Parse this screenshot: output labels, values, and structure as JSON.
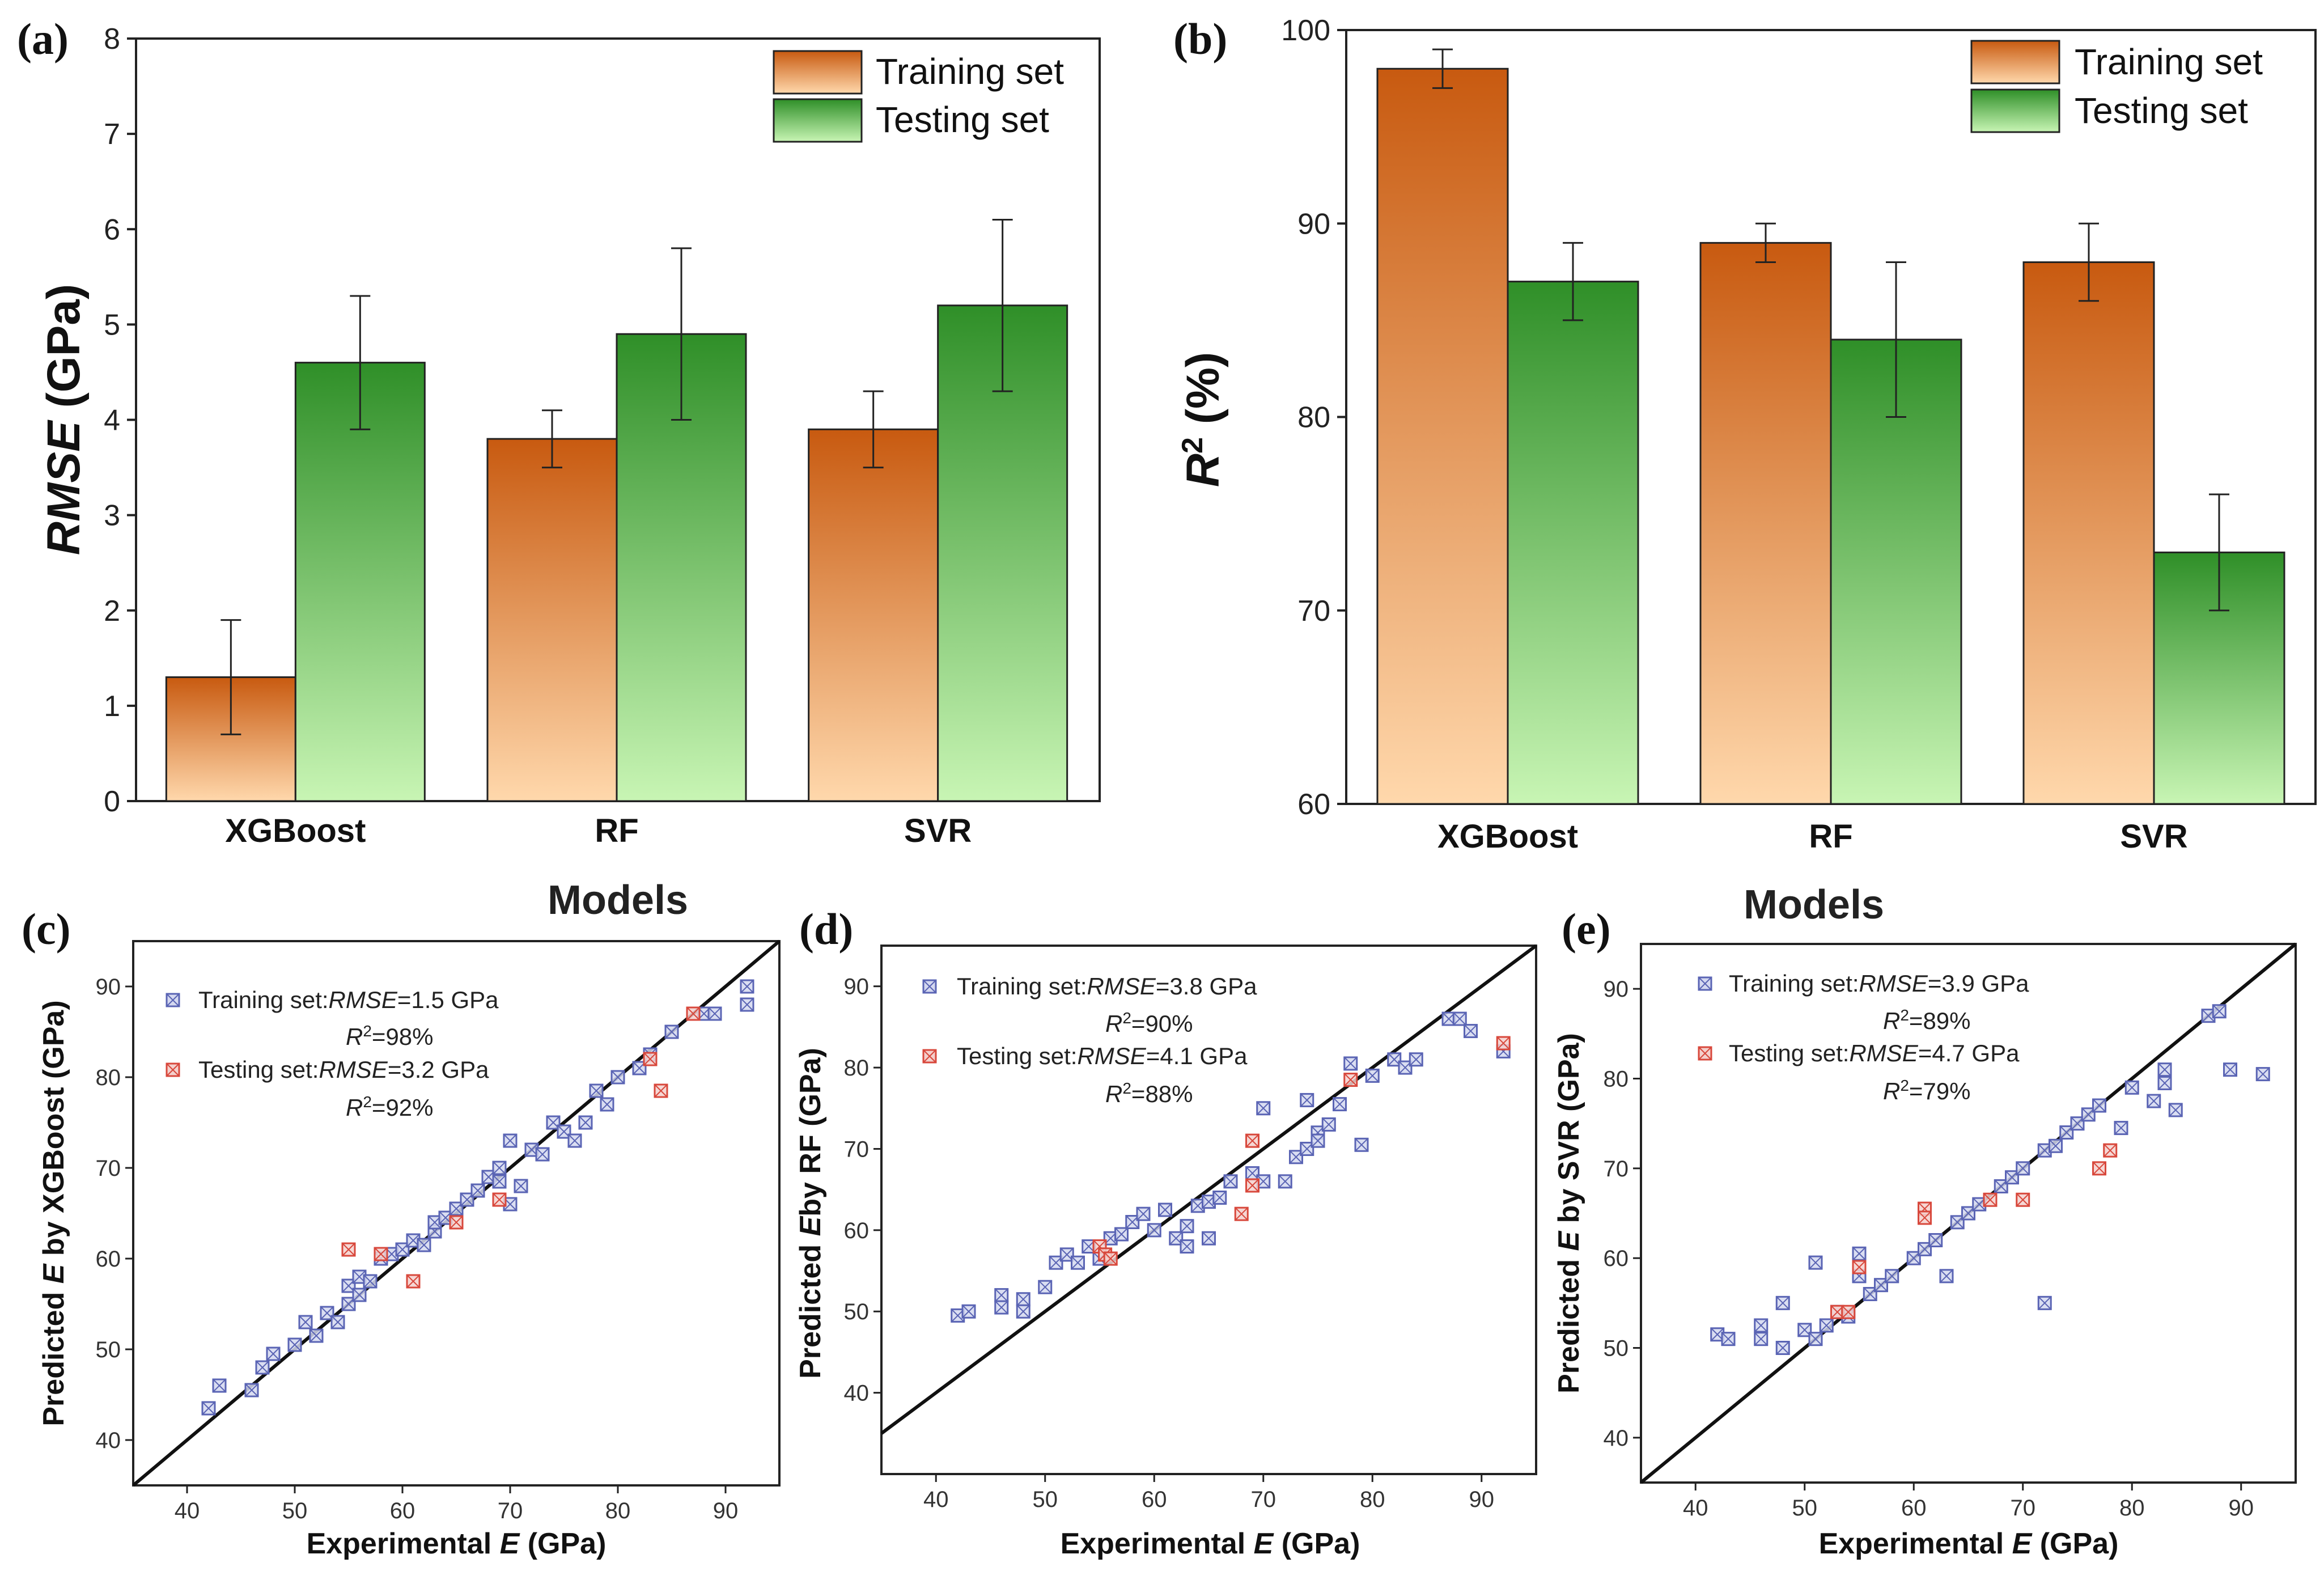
{
  "colors": {
    "train_top": "#c85a10",
    "train_bottom": "#ffd8ac",
    "test_top": "#2f8f28",
    "test_bottom": "#c8f5b4",
    "train_marker": "#5a64b4",
    "test_marker": "#d8483c"
  },
  "chart_data": [
    {
      "panel": "(a)",
      "type": "bar",
      "title": "",
      "xlabel": "Models",
      "ylabel_italic": "RMSE",
      "ylabel_rest": " (GPa)",
      "ylim": [
        0,
        8
      ],
      "yticks": [
        "0",
        "1",
        "2",
        "3",
        "4",
        "5",
        "6",
        "7",
        "8"
      ],
      "categories": [
        "XGBoost",
        "RF",
        "SVR"
      ],
      "legend": [
        "Training set",
        "Testing set"
      ],
      "legend_position": "top-right",
      "series": [
        {
          "name": "Training set",
          "values": [
            1.3,
            3.8,
            3.9
          ],
          "err_low": [
            0.7,
            3.5,
            3.5
          ],
          "err_high": [
            1.9,
            4.1,
            4.3
          ]
        },
        {
          "name": "Testing set",
          "values": [
            4.6,
            4.9,
            5.2
          ],
          "err_low": [
            3.9,
            4.0,
            4.3
          ],
          "err_high": [
            5.3,
            5.8,
            6.1
          ]
        }
      ]
    },
    {
      "panel": "(b)",
      "type": "bar",
      "title": "",
      "xlabel": "Models",
      "ylabel": "R",
      "ylabel_sup": "2",
      "ylabel_rest": " (%)",
      "ylim": [
        60,
        100
      ],
      "yticks": [
        "60",
        "70",
        "80",
        "90",
        "100"
      ],
      "categories": [
        "XGBoost",
        "RF",
        "SVR"
      ],
      "legend": [
        "Training set",
        "Testing set"
      ],
      "legend_position": "top-right",
      "series": [
        {
          "name": "Training set",
          "values": [
            98,
            89,
            88
          ],
          "err_low": [
            97,
            88,
            86
          ],
          "err_high": [
            99,
            90,
            90
          ]
        },
        {
          "name": "Testing set",
          "values": [
            87,
            84,
            73
          ],
          "err_low": [
            85,
            80,
            70
          ],
          "err_high": [
            89,
            88,
            76
          ]
        }
      ]
    },
    {
      "panel": "(c)",
      "type": "scatter",
      "xlabel_pre": "Experimental ",
      "xlabel_italic": "E",
      "xlabel_post": " (GPa)",
      "ylabel_pre": "Predicted ",
      "ylabel_italic": "E",
      "ylabel_post": " by XGBoost (GPa)",
      "xlim": [
        35,
        95
      ],
      "ylim": [
        35,
        95
      ],
      "xticks": [
        "40",
        "50",
        "60",
        "70",
        "80",
        "90"
      ],
      "yticks": [
        "40",
        "50",
        "60",
        "70",
        "80",
        "90"
      ],
      "annotations": {
        "train_label": "Training set:",
        "train_metric_italic": "RMSE",
        "train_metric_value": "=1.5 GPa",
        "train_r2_letter": "R",
        "train_r2_sup": "2",
        "train_r2_value": "=98%",
        "test_label": "Testing  set:",
        "test_metric_italic": "RMSE",
        "test_metric_value": "=3.2 GPa",
        "test_r2_letter": "R",
        "test_r2_sup": "2",
        "test_r2_value": "=92%"
      },
      "series": [
        {
          "name": "Training set",
          "x": [
            42,
            43,
            46,
            47,
            48,
            50,
            51,
            52,
            53,
            54,
            55,
            55,
            56,
            56,
            57,
            58,
            59,
            60,
            61,
            62,
            63,
            63,
            64,
            65,
            66,
            67,
            68,
            69,
            69,
            70,
            70,
            71,
            72,
            73,
            74,
            75,
            76,
            77,
            78,
            79,
            80,
            82,
            83,
            85,
            88,
            89,
            92,
            92
          ],
          "y": [
            43.5,
            46,
            45.5,
            48,
            49.5,
            50.5,
            53,
            51.5,
            54,
            53,
            55,
            57,
            56,
            58,
            57.5,
            60,
            60.5,
            61,
            62,
            61.5,
            63,
            64,
            64.5,
            65.5,
            66.5,
            67.5,
            69,
            68.5,
            70,
            66,
            73,
            68,
            72,
            71.5,
            75,
            74,
            73,
            75,
            78.5,
            77,
            80,
            81,
            82.5,
            85,
            87,
            87,
            88,
            90
          ]
        },
        {
          "name": "Testing set",
          "x": [
            55,
            58,
            61,
            65,
            69,
            83,
            84,
            87
          ],
          "y": [
            61,
            60.5,
            57.5,
            64,
            66.5,
            82,
            78.5,
            87
          ]
        }
      ]
    },
    {
      "panel": "(d)",
      "type": "scatter",
      "xlabel_pre": "Experimental ",
      "xlabel_italic": "E",
      "xlabel_post": " (GPa)",
      "ylabel_pre": "Predicted ",
      "ylabel_italic": "E",
      "ylabel_post": "by RF (GPa)",
      "xlim": [
        35,
        95
      ],
      "ylim": [
        30,
        95
      ],
      "xticks": [
        "40",
        "50",
        "60",
        "70",
        "80",
        "90"
      ],
      "yticks": [
        "40",
        "50",
        "60",
        "70",
        "80",
        "90"
      ],
      "annotations": {
        "train_label": "Training set:",
        "train_metric_italic": "RMSE",
        "train_metric_value": "=3.8 GPa",
        "train_r2_letter": "R",
        "train_r2_sup": "2",
        "train_r2_value": "=90%",
        "test_label": "Testing  set:",
        "test_metric_italic": "RMSE",
        "test_metric_value": "=4.1 GPa",
        "test_r2_letter": "R",
        "test_r2_sup": "2",
        "test_r2_value": "=88%"
      },
      "series": [
        {
          "name": "Training set",
          "x": [
            42,
            43,
            46,
            46,
            48,
            48,
            50,
            51,
            52,
            53,
            54,
            55,
            56,
            57,
            58,
            59,
            60,
            61,
            62,
            63,
            63,
            64,
            65,
            65,
            66,
            67,
            69,
            70,
            70,
            72,
            73,
            74,
            74,
            75,
            75,
            76,
            77,
            78,
            79,
            80,
            82,
            83,
            84,
            87,
            88,
            89,
            92
          ],
          "y": [
            49.5,
            50,
            52,
            50.5,
            51.5,
            50,
            53,
            56,
            57,
            56,
            58,
            56.5,
            59,
            59.5,
            61,
            62,
            60,
            62.5,
            59,
            58,
            60.5,
            63,
            63.5,
            59,
            64,
            66,
            67,
            66,
            75,
            66,
            69,
            76,
            70,
            72,
            71,
            73,
            75.5,
            80.5,
            70.5,
            79,
            81,
            80,
            81,
            86,
            86,
            84.5,
            82
          ]
        },
        {
          "name": "Testing set",
          "x": [
            55,
            55.5,
            56,
            68,
            69,
            69,
            78,
            92
          ],
          "y": [
            58,
            57,
            56.5,
            62,
            71,
            65.5,
            78.5,
            83
          ]
        }
      ]
    },
    {
      "panel": "(e)",
      "type": "scatter",
      "xlabel_pre": "Experimental ",
      "xlabel_italic": "E",
      "xlabel_post": " (GPa)",
      "ylabel_pre": "Predicted ",
      "ylabel_italic": "E",
      "ylabel_post": " by SVR (GPa)",
      "xlim": [
        35,
        95
      ],
      "ylim": [
        35,
        95
      ],
      "xticks": [
        "40",
        "50",
        "60",
        "70",
        "80",
        "90"
      ],
      "yticks": [
        "40",
        "50",
        "60",
        "70",
        "80",
        "90"
      ],
      "annotations": {
        "train_label": "Training set:",
        "train_metric_italic": "RMSE",
        "train_metric_value": "=3.9 GPa",
        "train_r2_letter": "R",
        "train_r2_sup": "2",
        "train_r2_value": "=89%",
        "test_label": "Testing  set:",
        "test_metric_italic": "RMSE",
        "test_metric_value": "=4.7 GPa",
        "test_r2_letter": "R",
        "test_r2_sup": "2",
        "test_r2_value": "=79%"
      },
      "series": [
        {
          "name": "Training set",
          "x": [
            42,
            43,
            46,
            46,
            48,
            48,
            50,
            51,
            51,
            52,
            53,
            54,
            55,
            55,
            56,
            57,
            58,
            60,
            61,
            62,
            63,
            64,
            65,
            66,
            68,
            69,
            70,
            72,
            72,
            73,
            74,
            75,
            76,
            77,
            79,
            80,
            82,
            83,
            83,
            84,
            87,
            88,
            89,
            92
          ],
          "y": [
            51.5,
            51,
            52.5,
            51,
            55,
            50,
            52,
            51,
            59.5,
            52.5,
            54,
            53.5,
            58,
            60.5,
            56,
            57,
            58,
            60,
            61,
            62,
            58,
            64,
            65,
            66,
            68,
            69,
            70,
            72,
            55,
            72.5,
            74,
            75,
            76,
            77,
            74.5,
            79,
            77.5,
            79.5,
            81,
            76.5,
            87,
            87.5,
            81,
            80.5
          ]
        },
        {
          "name": "Testing set",
          "x": [
            53,
            54,
            55,
            61,
            61,
            67,
            70,
            77,
            78
          ],
          "y": [
            54,
            54,
            59,
            65.5,
            64.5,
            66.5,
            66.5,
            70,
            72
          ]
        }
      ]
    }
  ]
}
